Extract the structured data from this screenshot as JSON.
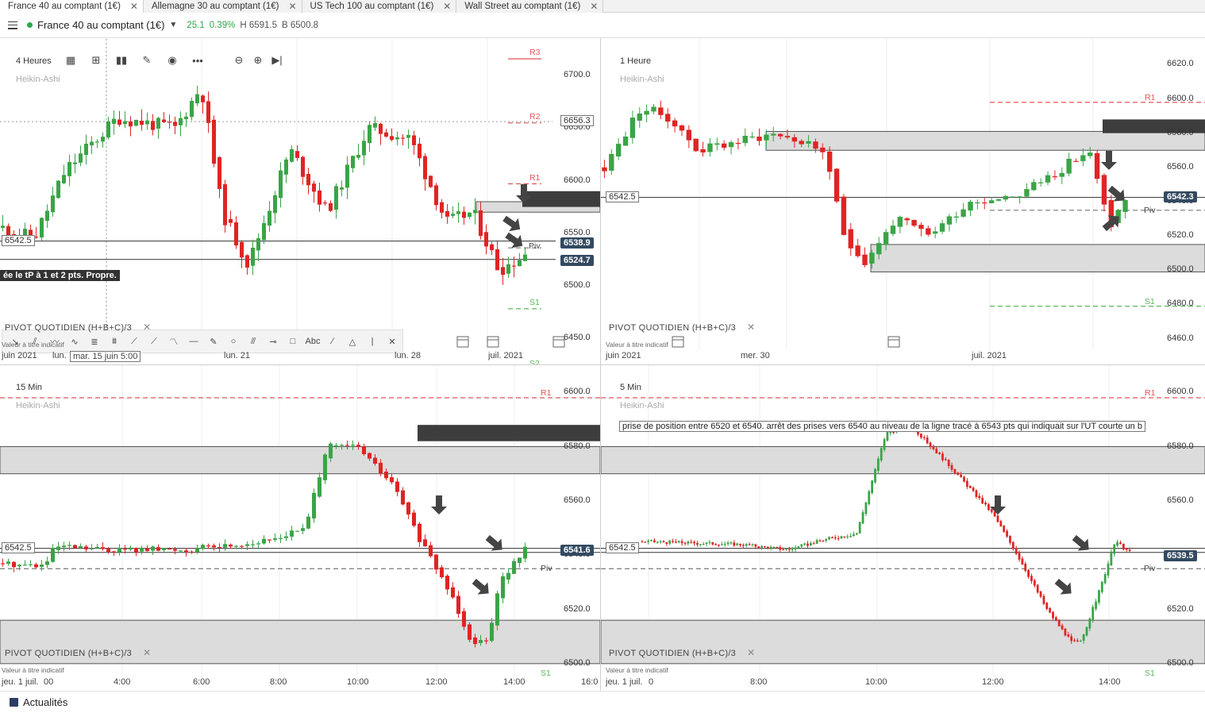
{
  "tabs": [
    {
      "label": "France 40 au comptant (1€)",
      "active": true
    },
    {
      "label": "Allemagne 30 au comptant (1€)",
      "active": false
    },
    {
      "label": "US Tech 100 au comptant (1€)",
      "active": false
    },
    {
      "label": "Wall Street au comptant (1€)",
      "active": false
    }
  ],
  "tab_close_glyph": "✕",
  "instrument": {
    "name": "France 40 au comptant (1€)",
    "change": "25.1",
    "change_pct": "0.39%",
    "high": "H 6591.5",
    "low": "B 6500.8"
  },
  "colors": {
    "up": "#3aa447",
    "down": "#e02424",
    "zone": "#dcdcdc",
    "resistance": "#e05555",
    "support": "#5bb85b",
    "pivot": "#777777",
    "bubble": "#334a60",
    "arrow": "#444444"
  },
  "panels": [
    {
      "id": "p1",
      "timeframe": "4 Heures",
      "chart_type": "Heikin-Ashi",
      "ymin": 6425,
      "ymax": 6735,
      "price_ticks": [
        "6700.0",
        "6650.0",
        "6600.0",
        "6550.0",
        "6500.0",
        "6450.0"
      ],
      "current_prices": [
        "6538.9",
        "6524.7"
      ],
      "horiz_line_label": "6542.5",
      "pivot_levels": {
        "R3": "R3",
        "R2": "R2",
        "R1": "R1",
        "S1": "S1",
        "S2": "S2",
        "Piv": "Piv"
      },
      "bubble_box": "6656.3",
      "time_labels": [
        "juin 2021",
        "lun.",
        "mar. 15 juin 5:00",
        "lun. 21",
        "lun. 28",
        "juil. 2021"
      ],
      "indicator": "PIVOT  QUOTIDIEN  (H+B+C)/3",
      "disclaimer": "Valeur à titre indicatif",
      "note": "ée le tP à 1 et 2 pts. Propre."
    },
    {
      "id": "p2",
      "timeframe": "1 Heure",
      "chart_type": "Heikin-Ashi",
      "ymin": 6445,
      "ymax": 6635,
      "price_ticks": [
        "6620.0",
        "6600.0",
        "6580.0",
        "6560.0",
        "6540.0",
        "6520.0",
        "6500.0",
        "6480.0",
        "6460.0"
      ],
      "current_price": "6542.3",
      "horiz_line_label": "6542.5",
      "time_labels": [
        "juin 2021",
        "mer. 30",
        "juil. 2021"
      ],
      "indicator": "PIVOT  QUOTIDIEN  (H+B+C)/3",
      "disclaimer": "Valeur à titre indicatif"
    },
    {
      "id": "p3",
      "timeframe": "15 Min",
      "chart_type": "Heikin-Ashi",
      "ymin": 6490,
      "ymax": 6610,
      "price_ticks": [
        "6600.0",
        "6580.0",
        "6560.0",
        "6540.0",
        "6520.0",
        "6500.0"
      ],
      "current_price": "6541.6",
      "horiz_line_label": "6542.5",
      "time_labels": [
        "jeu. 1 juil.",
        "00",
        "4:00",
        "6:00",
        "8:00",
        "10:00",
        "12:00",
        "14:00",
        "16:0"
      ],
      "indicator": "PIVOT  QUOTIDIEN  (H+B+C)/3",
      "disclaimer": "Valeur à titre indicatif"
    },
    {
      "id": "p4",
      "timeframe": "5 Min",
      "chart_type": "Heikin-Ashi",
      "ymin": 6490,
      "ymax": 6610,
      "price_ticks": [
        "6600.0",
        "6580.0",
        "6560.0",
        "6540.0",
        "6520.0",
        "6500.0"
      ],
      "current_price": "6539.5",
      "horiz_line_label": "6542.5",
      "time_labels": [
        "jeu. 1 juil.",
        "0",
        "8:00",
        "10:00",
        "12:00",
        "14:00"
      ],
      "indicator": "PIVOT  QUOTIDIEN  (H+B+C)/3",
      "disclaimer": "Valeur à titre indicatif",
      "note": "prise de position entre 6520 et 6540. arrêt des prises vers 6540 au niveau de la ligne tracé à 6543 pts qui indiquait sur l'UT courte un b"
    }
  ],
  "drawing_tools": [
    "arrow-tool-icon",
    "parallel-tool-icon",
    "path-tool-icon",
    "wave-tool-icon",
    "fib-tool-icon",
    "fib-ext-tool-icon",
    "gann-tool-icon",
    "trend-tool-icon",
    "elliott-tool-icon",
    "hline-tool-icon",
    "brush-tool-icon",
    "circle-tool-icon",
    "pitchfork-tool-icon",
    "connector-tool-icon",
    "rectangle-tool-icon",
    "text-tool-icon",
    "line-tool-icon",
    "triangle-tool-icon",
    "vline-tool-icon",
    "close-icon"
  ],
  "text_tool_label": "Abc",
  "toolbar_icons": [
    "calendar-icon",
    "layout-icon",
    "chart-type-icon",
    "pencil-icon",
    "eye-icon",
    "more-icon",
    "zoom-out-icon",
    "zoom-in-icon",
    "skip-end-icon"
  ],
  "footer": {
    "label": "Actualités"
  }
}
